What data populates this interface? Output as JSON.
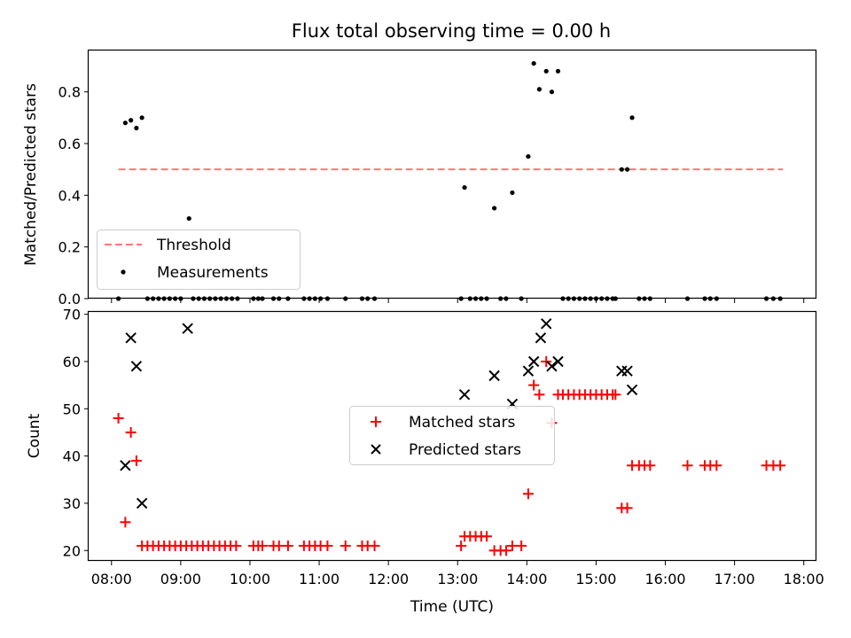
{
  "chart_data": [
    {
      "type": "scatter",
      "title": "Flux total observing time = 0.00 h",
      "xlabel": "",
      "ylabel": "Matched/Predicted stars",
      "ylim": [
        0,
        0.96
      ],
      "yticks": [
        "0.0",
        "0.2",
        "0.4",
        "0.6",
        "0.8"
      ],
      "ytick_values": [
        0,
        0.2,
        0.4,
        0.6,
        0.8
      ],
      "xlim": [
        7.67,
        18.17
      ],
      "xticks_values": [
        8,
        9,
        10,
        11,
        12,
        13,
        14,
        15,
        16,
        17,
        18
      ],
      "grid": false,
      "legend": {
        "placement": "lower-left",
        "entries": [
          "Threshold",
          "Measurements"
        ]
      },
      "threshold": {
        "name": "Threshold",
        "x": [
          8.1,
          17.7
        ],
        "y": 0.5,
        "color": "#ff7777"
      },
      "measurements": {
        "name": "Measurements",
        "color": "#000000",
        "x": [
          8.1,
          8.2,
          8.28,
          8.36,
          8.44,
          8.52,
          8.6,
          8.68,
          8.76,
          8.84,
          8.92,
          9.0,
          9.12,
          9.18,
          9.26,
          9.34,
          9.42,
          9.5,
          9.58,
          9.66,
          9.74,
          9.82,
          10.05,
          10.12,
          10.18,
          10.34,
          10.42,
          10.55,
          10.78,
          10.86,
          10.94,
          11.02,
          11.12,
          11.38,
          11.62,
          11.7,
          11.8,
          13.05,
          13.1,
          13.18,
          13.26,
          13.34,
          13.42,
          13.53,
          13.62,
          13.7,
          13.79,
          13.92,
          14.02,
          14.1,
          14.18,
          14.28,
          14.36,
          14.45,
          14.52,
          14.6,
          14.68,
          14.76,
          14.84,
          14.92,
          15.0,
          15.08,
          15.16,
          15.24,
          15.28,
          15.37,
          15.45,
          15.52,
          15.62,
          15.7,
          15.78,
          16.32,
          16.57,
          16.65,
          16.74,
          17.46,
          17.56,
          17.66
        ],
        "y": [
          0.0,
          0.68,
          0.69,
          0.66,
          0.7,
          0.0,
          0.0,
          0.0,
          0.0,
          0.0,
          0.0,
          0.0,
          0.31,
          0.0,
          0.0,
          0.0,
          0.0,
          0.0,
          0.0,
          0.0,
          0.0,
          0.0,
          0.0,
          0.0,
          0.0,
          0.0,
          0.0,
          0.0,
          0.0,
          0.0,
          0.0,
          0.0,
          0.0,
          0.0,
          0.0,
          0.0,
          0.0,
          0.0,
          0.43,
          0.0,
          0.0,
          0.0,
          0.0,
          0.35,
          0.0,
          0.0,
          0.41,
          0.0,
          0.55,
          0.91,
          0.81,
          0.88,
          0.8,
          0.88,
          0.0,
          0.0,
          0.0,
          0.0,
          0.0,
          0.0,
          0.0,
          0.0,
          0.0,
          0.0,
          0.0,
          0.5,
          0.5,
          0.7,
          0.0,
          0.0,
          0.0,
          0.0,
          0.0,
          0.0,
          0.0,
          0.0,
          0.0,
          0.0
        ]
      }
    },
    {
      "type": "scatter",
      "title": "",
      "xlabel": "Time (UTC)",
      "ylabel": "Count",
      "ylim": [
        17.8,
        70.5
      ],
      "yticks": [
        "20",
        "30",
        "40",
        "50",
        "60",
        "70"
      ],
      "ytick_values": [
        20,
        30,
        40,
        50,
        60,
        70
      ],
      "xlim": [
        7.67,
        18.17
      ],
      "xticks": [
        "08:00",
        "09:00",
        "10:00",
        "11:00",
        "12:00",
        "13:00",
        "14:00",
        "15:00",
        "16:00",
        "17:00",
        "18:00"
      ],
      "xticks_values": [
        8,
        9,
        10,
        11,
        12,
        13,
        14,
        15,
        16,
        17,
        18
      ],
      "grid": false,
      "legend": {
        "placement": "center-right",
        "entries": [
          "Matched stars",
          "Predicted stars"
        ]
      },
      "series": [
        {
          "name": "Matched stars",
          "marker": "+",
          "color": "#ff0000",
          "x": [
            8.1,
            8.2,
            8.28,
            8.36,
            8.44,
            8.52,
            8.6,
            8.68,
            8.76,
            8.84,
            8.92,
            9.0,
            9.08,
            9.16,
            9.24,
            9.32,
            9.4,
            9.48,
            9.56,
            9.64,
            9.72,
            9.8,
            10.05,
            10.12,
            10.18,
            10.34,
            10.42,
            10.55,
            10.78,
            10.86,
            10.94,
            11.02,
            11.12,
            11.38,
            11.62,
            11.7,
            11.8,
            13.05,
            13.1,
            13.18,
            13.26,
            13.34,
            13.42,
            13.53,
            13.62,
            13.7,
            13.79,
            13.92,
            14.02,
            14.1,
            14.18,
            14.28,
            14.36,
            14.45,
            14.52,
            14.6,
            14.68,
            14.76,
            14.84,
            14.92,
            15.0,
            15.08,
            15.16,
            15.24,
            15.28,
            15.37,
            15.45,
            15.52,
            15.62,
            15.7,
            15.78,
            16.32,
            16.57,
            16.65,
            16.74,
            17.46,
            17.56,
            17.66
          ],
          "y": [
            48,
            26,
            45,
            39,
            21,
            21,
            21,
            21,
            21,
            21,
            21,
            21,
            21,
            21,
            21,
            21,
            21,
            21,
            21,
            21,
            21,
            21,
            21,
            21,
            21,
            21,
            21,
            21,
            21,
            21,
            21,
            21,
            21,
            21,
            21,
            21,
            21,
            21,
            23,
            23,
            23,
            23,
            23,
            20,
            20,
            20,
            21,
            21,
            32,
            55,
            53,
            60,
            47,
            53,
            53,
            53,
            53,
            53,
            53,
            53,
            53,
            53,
            53,
            53,
            53,
            29,
            29,
            38,
            38,
            38,
            38,
            38,
            38,
            38,
            38,
            38,
            38,
            38
          ]
        },
        {
          "name": "Predicted stars",
          "marker": "x",
          "color": "#000000",
          "x": [
            8.2,
            8.28,
            8.36,
            8.44,
            9.1,
            13.1,
            13.53,
            13.79,
            14.02,
            14.1,
            14.2,
            14.28,
            14.36,
            14.45,
            15.37,
            15.45,
            15.52
          ],
          "y": [
            38,
            65,
            59,
            30,
            67,
            53,
            57,
            51,
            58,
            60,
            65,
            68,
            59,
            60,
            58,
            58,
            54
          ]
        }
      ]
    }
  ]
}
